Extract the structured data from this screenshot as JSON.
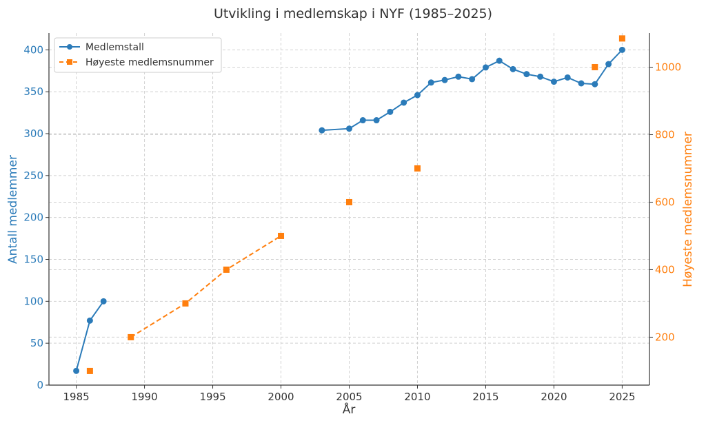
{
  "colors": {
    "left": "#2b7bb9",
    "right": "#ff7f0e",
    "axis": "#333333",
    "grid": "#d0d0d0"
  },
  "chart_data": {
    "type": "line",
    "title": "Utvikling i medlemskap i NYF (1985–2025)",
    "xlabel": "År",
    "ylabel_left": "Antall medlemmer",
    "ylabel_right": "Høyeste medlemsnummer",
    "xlim": [
      1983,
      2027
    ],
    "ylim_left": [
      0,
      420
    ],
    "ylim_right": [
      58,
      1101
    ],
    "x_ticks": [
      1985,
      1990,
      1995,
      2000,
      2005,
      2010,
      2015,
      2020,
      2025
    ],
    "y_ticks_left": [
      0,
      50,
      100,
      150,
      200,
      250,
      300,
      350,
      400
    ],
    "y_ticks_right": [
      200,
      400,
      600,
      800,
      1000
    ],
    "grid": true,
    "legend_position": "top-left",
    "series": [
      {
        "name": "Medlemstall",
        "axis": "left",
        "marker": "circle",
        "line": "solid",
        "segments": [
          [
            [
              1985,
              17
            ],
            [
              1986,
              77
            ],
            [
              1987,
              100
            ]
          ],
          [
            [
              2003,
              304
            ],
            [
              2005,
              306
            ],
            [
              2006,
              316
            ],
            [
              2007,
              316
            ],
            [
              2008,
              326
            ],
            [
              2009,
              337
            ],
            [
              2010,
              346
            ],
            [
              2011,
              361
            ],
            [
              2012,
              364
            ],
            [
              2013,
              368
            ],
            [
              2014,
              365
            ],
            [
              2015,
              379
            ],
            [
              2016,
              387
            ],
            [
              2017,
              377
            ],
            [
              2018,
              371
            ],
            [
              2019,
              368
            ],
            [
              2020,
              362
            ],
            [
              2021,
              367
            ],
            [
              2022,
              360
            ],
            [
              2023,
              359
            ],
            [
              2024,
              383
            ],
            [
              2025,
              400
            ]
          ]
        ]
      },
      {
        "name": "Høyeste medlemsnummer",
        "axis": "right",
        "marker": "square",
        "line": "dashed",
        "segments": [
          [
            [
              1986,
              100
            ]
          ],
          [
            [
              1989,
              200
            ],
            [
              1993,
              300
            ],
            [
              1996,
              400
            ],
            [
              2000,
              500
            ]
          ],
          [
            [
              2005,
              600
            ]
          ],
          [
            [
              2010,
              700
            ]
          ],
          [
            [
              2023,
              1000
            ]
          ],
          [
            [
              2025,
              1085
            ]
          ]
        ]
      }
    ]
  }
}
